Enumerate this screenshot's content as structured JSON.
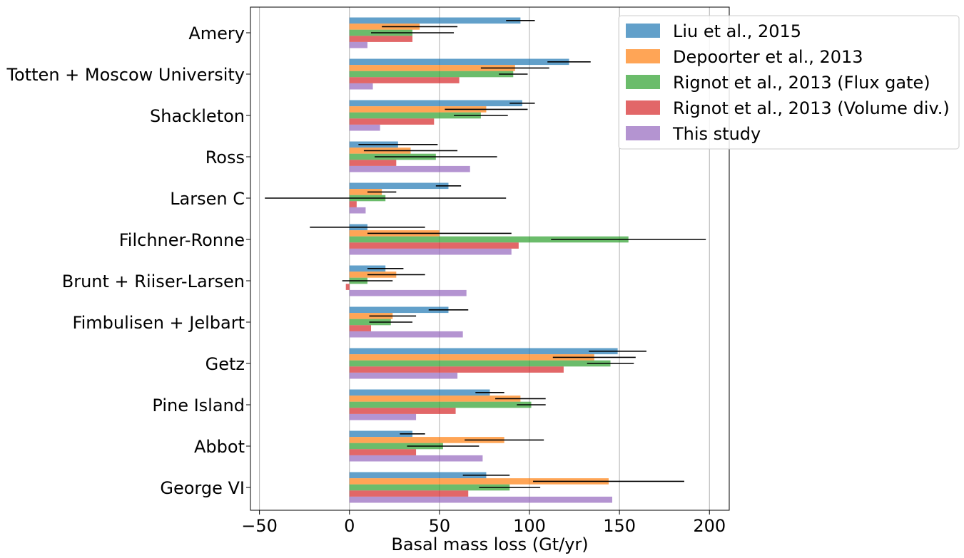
{
  "chart_data": {
    "type": "bar",
    "orientation": "horizontal",
    "title": "",
    "xlabel": "Basal mass loss (Gt/yr)",
    "ylabel": "",
    "xlim": [
      -55,
      211
    ],
    "xticks": [
      -50,
      0,
      50,
      100,
      150,
      200
    ],
    "xtick_labels": [
      "−50",
      "0",
      "50",
      "100",
      "150",
      "200"
    ],
    "grid": "x",
    "legend_position": "top-right",
    "categories": [
      "Amery",
      "Totten + Moscow University",
      "Shackleton",
      "Ross",
      "Larsen C",
      "Filchner-Ronne",
      "Brunt + Riiser-Larsen",
      "Fimbulisen + Jelbart",
      "Getz",
      "Pine Island",
      "Abbot",
      "George VI"
    ],
    "series": [
      {
        "name": "Liu et al., 2015",
        "color": "#1f77b4",
        "values": [
          95,
          122,
          96,
          27,
          55,
          10,
          20,
          55,
          149,
          78,
          35,
          76
        ],
        "errors": [
          8,
          12,
          7,
          22,
          7,
          32,
          10,
          11,
          16,
          8,
          7,
          13
        ]
      },
      {
        "name": "Depoorter et al., 2013",
        "color": "#ff7f0e",
        "values": [
          39,
          92,
          76,
          34,
          18,
          50,
          26,
          24,
          136,
          95,
          86,
          144
        ],
        "errors": [
          21,
          19,
          23,
          26,
          8,
          40,
          16,
          13,
          23,
          14,
          22,
          42
        ]
      },
      {
        "name": "Rignot et al., 2013 (Flux gate)",
        "color": "#2ca02c",
        "values": [
          35,
          91,
          73,
          48,
          20,
          155,
          10,
          23,
          145,
          101,
          52,
          89
        ],
        "errors": [
          23,
          8,
          15,
          34,
          67,
          43,
          14,
          12,
          13,
          8,
          20,
          17
        ]
      },
      {
        "name": "Rignot et al., 2013 (Volume div.)",
        "color": "#d62728",
        "values": [
          35,
          61,
          47,
          26,
          4,
          94,
          -2,
          12,
          119,
          59,
          37,
          66
        ],
        "errors": [
          0,
          0,
          0,
          0,
          0,
          0,
          0,
          0,
          0,
          0,
          0,
          0
        ]
      },
      {
        "name": "This study",
        "color": "#9467bd",
        "values": [
          10,
          13,
          17,
          67,
          9,
          90,
          65,
          63,
          60,
          37,
          74,
          146
        ],
        "errors": [
          0,
          0,
          0,
          0,
          0,
          0,
          0,
          0,
          0,
          0,
          0,
          0
        ]
      }
    ]
  }
}
